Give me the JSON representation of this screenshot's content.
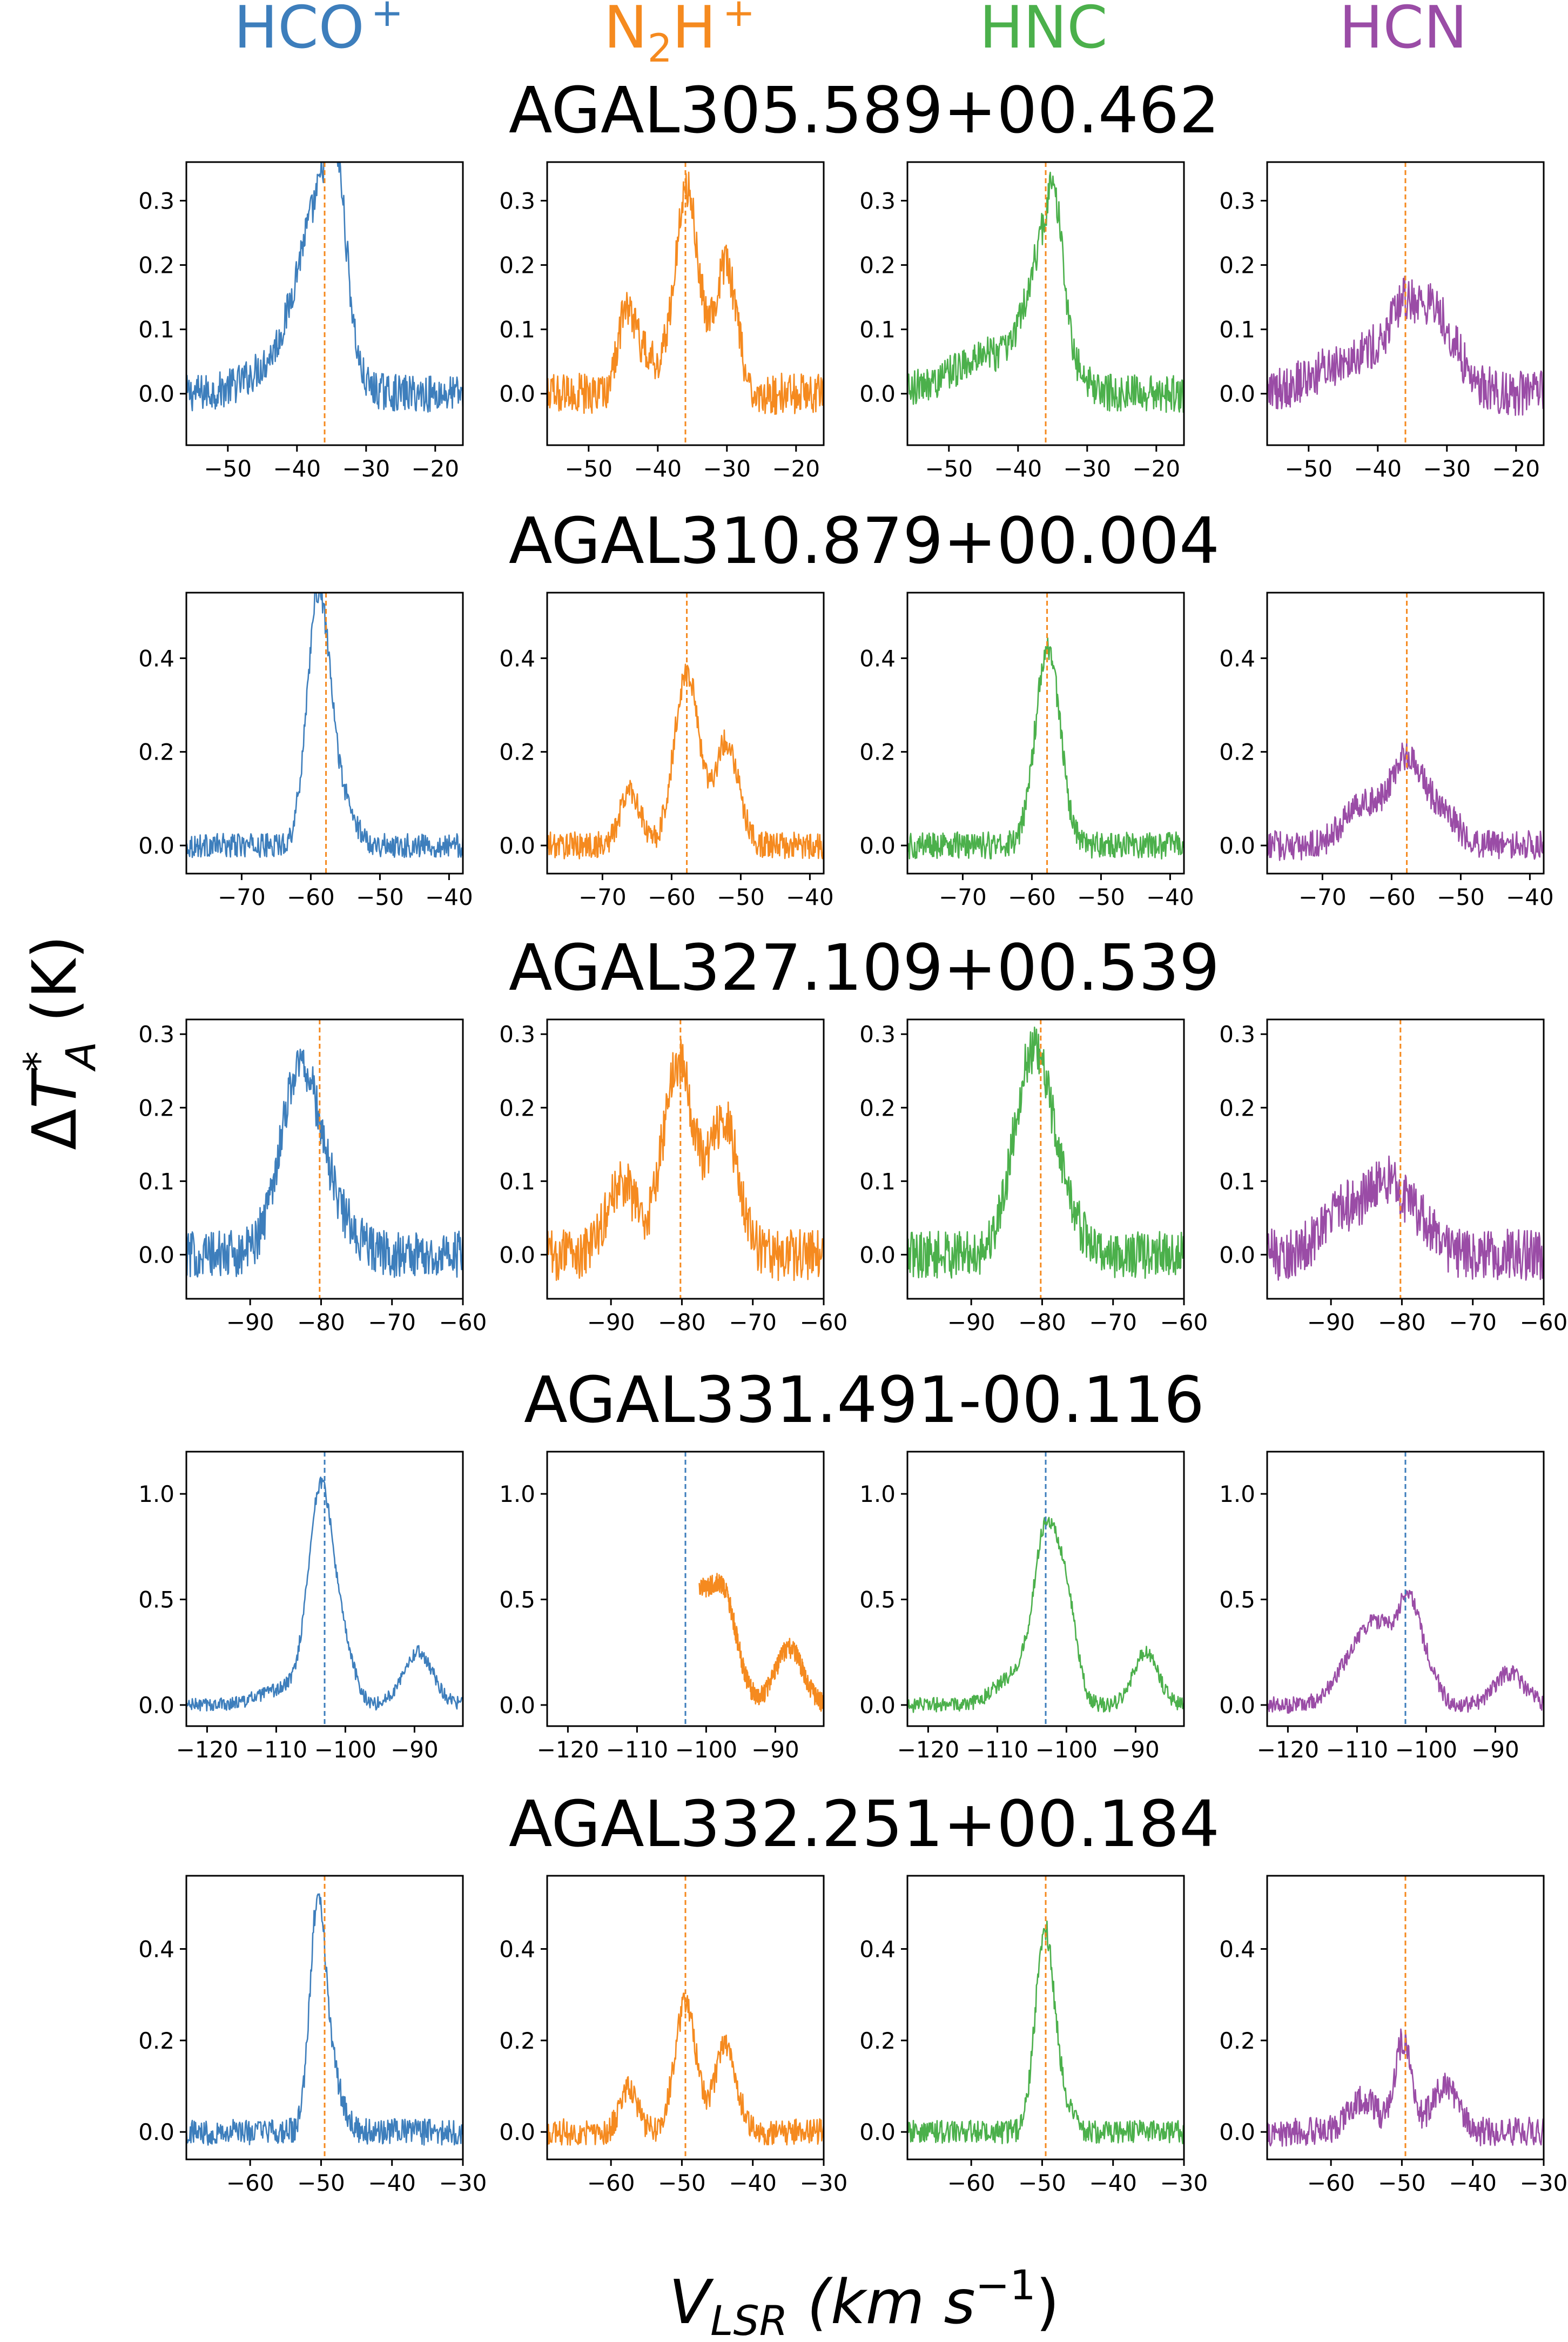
{
  "colors": {
    "hcop": "#3d7ebc",
    "n2hp": "#f58a1f",
    "hnc": "#4bb04b",
    "hcn": "#9a4ca6",
    "vline_orange": "#f58a1f",
    "vline_blue": "#3d7ebc"
  },
  "molecules": [
    {
      "label": "HCO",
      "sub": "",
      "sup": "+",
      "color_key": "hcop"
    },
    {
      "label": "N",
      "sub": "2",
      "label2": "H",
      "sup": "+",
      "color_key": "n2hp"
    },
    {
      "label": "HNC",
      "sub": "",
      "sup": "",
      "color_key": "hnc"
    },
    {
      "label": "HCN",
      "sub": "",
      "sup": "",
      "color_key": "hcn"
    }
  ],
  "axes": {
    "ylabel_delta": "Δ",
    "ylabel_T": "T",
    "ylabel_sup": "*",
    "ylabel_sub": "A",
    "ylabel_unit": " (K)",
    "xlabel_V": "V",
    "xlabel_sub": "LSR",
    "xlabel_unit_open": " (km s",
    "xlabel_unit_sup": "−1",
    "xlabel_unit_close": ")"
  },
  "chart_data": [
    {
      "type": "line",
      "title": "AGAL305.589+00.462",
      "xlim": [
        -56,
        -16
      ],
      "ylim": [
        -0.08,
        0.36
      ],
      "xticks": [
        -50,
        -40,
        -30,
        -20
      ],
      "xtick_labels": [
        "−50",
        "−40",
        "−30",
        "−20"
      ],
      "yticks": [
        0.0,
        0.1,
        0.2,
        0.3
      ],
      "ytick_labels": [
        "0.0",
        "0.1",
        "0.2",
        "0.3"
      ],
      "vline": -36,
      "vline_color_key": "vline_orange",
      "series": [
        {
          "name": "HCO+",
          "noise": 0.018,
          "peaks": [
            {
              "x": -37.5,
              "a": 0.2,
              "w": 2.5
            },
            {
              "x": -34.3,
              "a": 0.26,
              "w": 1.6
            },
            {
              "x": -40,
              "a": 0.07,
              "w": 5
            }
          ]
        },
        {
          "name": "N2H+",
          "noise": 0.02,
          "peaks": [
            {
              "x": -35.8,
              "a": 0.32,
              "w": 1.7
            },
            {
              "x": -44.5,
              "a": 0.12,
              "w": 1.3
            },
            {
              "x": -30.2,
              "a": 0.2,
              "w": 1.6
            },
            {
              "x": -41.5,
              "a": 0.05,
              "w": 2
            }
          ]
        },
        {
          "name": "HNC",
          "noise": 0.018,
          "peaks": [
            {
              "x": -36,
              "a": 0.2,
              "w": 2.5
            },
            {
              "x": -34.6,
              "a": 0.12,
              "w": 1.1
            },
            {
              "x": -43,
              "a": 0.06,
              "w": 6
            }
          ]
        },
        {
          "name": "HCN",
          "noise": 0.022,
          "peaks": [
            {
              "x": -40,
              "a": 0.07,
              "w": 7
            },
            {
              "x": -32,
              "a": 0.1,
              "w": 3
            },
            {
              "x": -36.5,
              "a": 0.05,
              "w": 1.5
            }
          ]
        }
      ]
    },
    {
      "type": "line",
      "title": "AGAL310.879+00.004",
      "xlim": [
        -78,
        -38
      ],
      "ylim": [
        -0.06,
        0.54
      ],
      "xticks": [
        -70,
        -60,
        -50,
        -40
      ],
      "xtick_labels": [
        "−70",
        "−60",
        "−50",
        "−40"
      ],
      "yticks": [
        0.0,
        0.2,
        0.4
      ],
      "ytick_labels": [
        "0.0",
        "0.2",
        "0.4"
      ],
      "vline": -57.8,
      "vline_color_key": "vline_orange",
      "series": [
        {
          "name": "HCO+",
          "noise": 0.016,
          "peaks": [
            {
              "x": -59,
              "a": 0.48,
              "w": 1.6
            },
            {
              "x": -56.5,
              "a": 0.12,
              "w": 2.2
            }
          ]
        },
        {
          "name": "N2H+",
          "noise": 0.018,
          "peaks": [
            {
              "x": -57.8,
              "a": 0.37,
              "w": 1.8
            },
            {
              "x": -66,
              "a": 0.12,
              "w": 1.4
            },
            {
              "x": -52,
              "a": 0.22,
              "w": 1.7
            }
          ]
        },
        {
          "name": "HNC",
          "noise": 0.018,
          "peaks": [
            {
              "x": -57.7,
              "a": 0.42,
              "w": 1.8
            }
          ]
        },
        {
          "name": "HCN",
          "noise": 0.02,
          "peaks": [
            {
              "x": -58,
              "a": 0.18,
              "w": 2.3
            },
            {
              "x": -64.5,
              "a": 0.09,
              "w": 2.5
            },
            {
              "x": -53,
              "a": 0.07,
              "w": 2.5
            }
          ]
        }
      ]
    },
    {
      "type": "line",
      "title": "AGAL327.109+00.539",
      "xlim": [
        -99,
        -60
      ],
      "ylim": [
        -0.06,
        0.32
      ],
      "xticks": [
        -90,
        -80,
        -70,
        -60
      ],
      "xtick_labels": [
        "−90",
        "−80",
        "−70",
        "−60"
      ],
      "yticks": [
        0.0,
        0.1,
        0.2,
        0.3
      ],
      "ytick_labels": [
        "0.0",
        "0.1",
        "0.2",
        "0.3"
      ],
      "vline": -80.2,
      "vline_color_key": "vline_orange",
      "series": [
        {
          "name": "HCO+",
          "noise": 0.02,
          "peaks": [
            {
              "x": -83,
              "a": 0.25,
              "w": 2.8
            },
            {
              "x": -78,
              "a": 0.04,
              "w": 3
            }
          ]
        },
        {
          "name": "N2H+",
          "noise": 0.022,
          "peaks": [
            {
              "x": -80.5,
              "a": 0.26,
              "w": 2.2
            },
            {
              "x": -88.5,
              "a": 0.1,
              "w": 2
            },
            {
              "x": -74,
              "a": 0.18,
              "w": 2
            }
          ]
        },
        {
          "name": "HNC",
          "noise": 0.02,
          "peaks": [
            {
              "x": -81.5,
              "a": 0.26,
              "w": 2.6
            },
            {
              "x": -77.5,
              "a": 0.06,
              "w": 2.5
            }
          ]
        },
        {
          "name": "HCN",
          "noise": 0.022,
          "peaks": [
            {
              "x": -82,
              "a": 0.09,
              "w": 2.5
            },
            {
              "x": -88,
              "a": 0.06,
              "w": 3
            },
            {
              "x": -77,
              "a": 0.04,
              "w": 2
            }
          ]
        }
      ]
    },
    {
      "type": "line",
      "title": "AGAL331.491-00.116",
      "xlim": [
        -123,
        -83
      ],
      "ylim": [
        -0.1,
        1.2
      ],
      "xticks": [
        -120,
        -110,
        -100,
        -90
      ],
      "xtick_labels": [
        "−120",
        "−110",
        "−100",
        "−90"
      ],
      "yticks": [
        0.0,
        0.5,
        1.0
      ],
      "ytick_labels": [
        "0.0",
        "0.5",
        "1.0"
      ],
      "vline": -103,
      "vline_color_key": "vline_blue",
      "series": [
        {
          "name": "HCO+",
          "noise": 0.02,
          "peaks": [
            {
              "x": -103.5,
              "a": 1.0,
              "w": 1.8
            },
            {
              "x": -100,
              "a": 0.2,
              "w": 1.5
            },
            {
              "x": -89.5,
              "a": 0.25,
              "w": 2.2
            },
            {
              "x": -108,
              "a": 0.08,
              "w": 4
            }
          ]
        },
        {
          "name": "N2H+",
          "noise": 0.03,
          "xstart": -101,
          "peaks": [
            {
              "x": -102,
              "a": 0.5,
              "w": 2.2
            },
            {
              "x": -97.5,
              "a": 0.5,
              "w": 2
            },
            {
              "x": -88,
              "a": 0.27,
              "w": 2
            }
          ]
        },
        {
          "name": "HNC",
          "noise": 0.022,
          "peaks": [
            {
              "x": -103,
              "a": 0.75,
              "w": 1.7
            },
            {
              "x": -100,
              "a": 0.45,
              "w": 1.5
            },
            {
              "x": -88.5,
              "a": 0.25,
              "w": 1.8
            },
            {
              "x": -107,
              "a": 0.15,
              "w": 3
            }
          ]
        },
        {
          "name": "HCN",
          "noise": 0.025,
          "peaks": [
            {
              "x": -106,
              "a": 0.32,
              "w": 3.5
            },
            {
              "x": -102.5,
              "a": 0.3,
              "w": 1.3
            },
            {
              "x": -100,
              "a": 0.15,
              "w": 1.5
            },
            {
              "x": -110,
              "a": 0.15,
              "w": 3
            },
            {
              "x": -88,
              "a": 0.15,
              "w": 2.2
            }
          ]
        }
      ]
    },
    {
      "type": "line",
      "title": "AGAL332.251+00.184",
      "xlim": [
        -69,
        -30
      ],
      "ylim": [
        -0.06,
        0.56
      ],
      "xticks": [
        -60,
        -50,
        -40,
        -30
      ],
      "xtick_labels": [
        "−60",
        "−50",
        "−40",
        "−30"
      ],
      "yticks": [
        0.0,
        0.2,
        0.4
      ],
      "ytick_labels": [
        "0.0",
        "0.2",
        "0.4"
      ],
      "vline": -49.5,
      "vline_color_key": "vline_orange",
      "series": [
        {
          "name": "HCO+",
          "noise": 0.018,
          "peaks": [
            {
              "x": -50.5,
              "a": 0.47,
              "w": 1.1
            },
            {
              "x": -48.5,
              "a": 0.12,
              "w": 1.5
            }
          ]
        },
        {
          "name": "N2H+",
          "noise": 0.018,
          "peaks": [
            {
              "x": -49.5,
              "a": 0.28,
              "w": 1.5
            },
            {
              "x": -57.5,
              "a": 0.1,
              "w": 1.2
            },
            {
              "x": -43.8,
              "a": 0.19,
              "w": 1.5
            }
          ]
        },
        {
          "name": "HNC",
          "noise": 0.016,
          "peaks": [
            {
              "x": -49.7,
              "a": 0.42,
              "w": 1.3
            },
            {
              "x": -47.5,
              "a": 0.07,
              "w": 1.5
            }
          ]
        },
        {
          "name": "HCN",
          "noise": 0.02,
          "peaks": [
            {
              "x": -49.8,
              "a": 0.2,
              "w": 1.2
            },
            {
              "x": -55.5,
              "a": 0.07,
              "w": 2
            },
            {
              "x": -44,
              "a": 0.1,
              "w": 1.8
            }
          ]
        }
      ]
    }
  ]
}
